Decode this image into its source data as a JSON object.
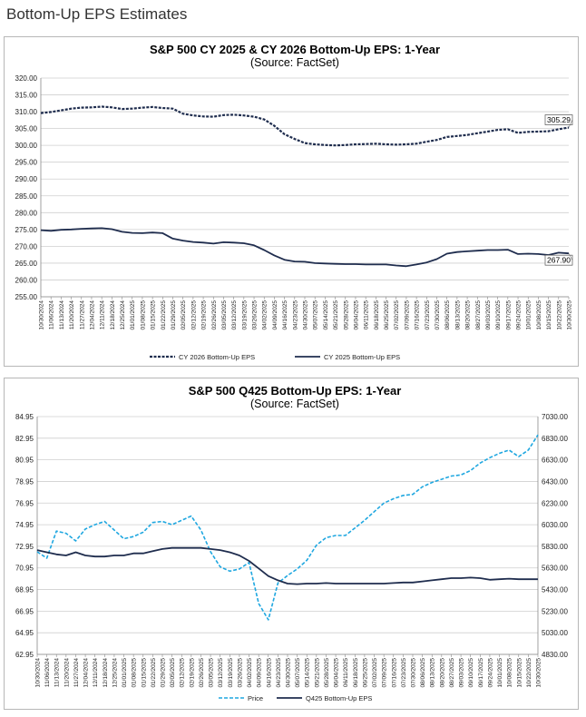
{
  "page": {
    "title": "Bottom-Up EPS Estimates"
  },
  "colors": {
    "navy": "#1f2d4e",
    "price": "#1fa7e0",
    "grid": "#cfcfcf",
    "axis": "#888888"
  },
  "chart_data": [
    {
      "type": "line",
      "title": "S&P 500 CY 2025 & CY 2026 Bottom-Up  EPS: 1-Year",
      "subtitle": "(Source: FactSet)",
      "ylim": [
        255,
        320
      ],
      "y_ticks": [
        "255.00",
        "260.00",
        "265.00",
        "270.00",
        "275.00",
        "280.00",
        "285.00",
        "290.00",
        "295.00",
        "300.00",
        "305.00",
        "310.00",
        "315.00",
        "320.00"
      ],
      "x_labels": [
        "10/30/2024",
        "11/06/2024",
        "11/13/2024",
        "11/20/2024",
        "11/27/2024",
        "12/04/2024",
        "12/11/2024",
        "12/18/2024",
        "12/25/2024",
        "01/01/2025",
        "01/08/2025",
        "01/15/2025",
        "01/22/2025",
        "01/29/2025",
        "02/05/2025",
        "02/12/2025",
        "02/19/2025",
        "02/26/2025",
        "03/05/2025",
        "03/12/2025",
        "03/19/2025",
        "03/26/2025",
        "04/02/2025",
        "04/09/2025",
        "04/16/2025",
        "04/23/2025",
        "04/30/2025",
        "05/07/2025",
        "05/14/2025",
        "05/21/2025",
        "05/28/2025",
        "06/04/2025",
        "06/11/2025",
        "06/18/2025",
        "06/25/2025",
        "07/02/2025",
        "07/09/2025",
        "07/16/2025",
        "07/23/2025",
        "07/30/2025",
        "08/06/2025",
        "08/13/2025",
        "08/20/2025",
        "08/27/2025",
        "09/03/2025",
        "09/10/2025",
        "09/17/2025",
        "09/24/2025",
        "10/01/2025",
        "10/08/2025",
        "10/15/2025",
        "10/22/2025",
        "10/30/2025"
      ],
      "series": [
        {
          "name": "CY 2026 Bottom-Up EPS",
          "style": "dashed",
          "values": [
            309.6,
            309.9,
            310.4,
            310.9,
            311.2,
            311.3,
            311.5,
            311.3,
            310.8,
            310.9,
            311.2,
            311.4,
            311.1,
            310.9,
            309.4,
            308.9,
            308.6,
            308.5,
            309.0,
            309.1,
            308.9,
            308.5,
            307.7,
            305.8,
            303.3,
            301.9,
            300.7,
            300.3,
            300.1,
            300.0,
            300.1,
            300.3,
            300.4,
            300.5,
            300.3,
            300.2,
            300.3,
            300.5,
            301.1,
            301.6,
            302.5,
            302.8,
            303.1,
            303.6,
            304.1,
            304.6,
            304.8,
            303.7,
            304.0,
            304.1,
            304.2,
            304.8,
            305.29
          ],
          "last_label": "305.29"
        },
        {
          "name": "CY 2025 Bottom-Up EPS",
          "style": "solid",
          "values": [
            274.8,
            274.6,
            274.9,
            275.0,
            275.2,
            275.3,
            275.4,
            275.1,
            274.3,
            274.0,
            273.9,
            274.1,
            273.9,
            272.3,
            271.7,
            271.3,
            271.1,
            270.8,
            271.2,
            271.1,
            270.9,
            270.3,
            268.9,
            267.3,
            266.0,
            265.5,
            265.4,
            265.0,
            264.9,
            264.8,
            264.7,
            264.7,
            264.6,
            264.6,
            264.6,
            264.3,
            264.1,
            264.6,
            265.2,
            266.2,
            267.8,
            268.3,
            268.5,
            268.7,
            268.9,
            268.9,
            269.0,
            267.7,
            267.8,
            267.7,
            267.4,
            268.1,
            267.9
          ],
          "last_label": "267.90"
        }
      ]
    },
    {
      "type": "line",
      "title": "S&P 500 Q425 Bottom-Up  EPS: 1-Year",
      "subtitle": "(Source: FactSet)",
      "ylim_left": [
        62.95,
        84.95
      ],
      "ylim_right": [
        4830,
        7030
      ],
      "y_ticks_left": [
        "62.95",
        "64.95",
        "66.95",
        "68.95",
        "70.95",
        "72.95",
        "74.95",
        "76.95",
        "78.95",
        "80.95",
        "82.95",
        "84.95"
      ],
      "y_ticks_right": [
        "4830.00",
        "5030.00",
        "5230.00",
        "5430.00",
        "5630.00",
        "5830.00",
        "6030.00",
        "6230.00",
        "6430.00",
        "6630.00",
        "6830.00",
        "7030.00"
      ],
      "x_labels": [
        "10/30/2024",
        "11/06/2024",
        "11/13/2024",
        "11/20/2024",
        "11/27/2024",
        "12/04/2024",
        "12/11/2024",
        "12/18/2024",
        "12/25/2024",
        "01/01/2025",
        "01/08/2025",
        "01/15/2025",
        "01/22/2025",
        "01/29/2025",
        "02/05/2025",
        "02/12/2025",
        "02/19/2025",
        "02/26/2025",
        "03/05/2025",
        "03/12/2025",
        "03/19/2025",
        "03/26/2025",
        "04/02/2025",
        "04/09/2025",
        "04/16/2025",
        "04/23/2025",
        "04/30/2025",
        "05/07/2025",
        "05/14/2025",
        "05/21/2025",
        "05/28/2025",
        "06/04/2025",
        "06/11/2025",
        "06/18/2025",
        "06/25/2025",
        "07/02/2025",
        "07/09/2025",
        "07/16/2025",
        "07/23/2025",
        "07/30/2025",
        "08/06/2025",
        "08/13/2025",
        "08/20/2025",
        "08/27/2025",
        "09/03/2025",
        "09/10/2025",
        "09/17/2025",
        "09/24/2025",
        "10/01/2025",
        "10/08/2025",
        "10/15/2025",
        "10/22/2025",
        "10/30/2025"
      ],
      "series": [
        {
          "name": "Price",
          "style": "dashed",
          "axis": "right",
          "values": [
            5780,
            5720,
            5970,
            5950,
            5880,
            5990,
            6030,
            6060,
            5980,
            5900,
            5920,
            5960,
            6050,
            6060,
            6030,
            6070,
            6110,
            5980,
            5780,
            5640,
            5600,
            5620,
            5680,
            5300,
            5150,
            5490,
            5560,
            5620,
            5700,
            5840,
            5910,
            5930,
            5930,
            6000,
            6070,
            6150,
            6230,
            6270,
            6300,
            6310,
            6380,
            6420,
            6450,
            6480,
            6490,
            6530,
            6600,
            6650,
            6690,
            6720,
            6660,
            6720,
            6860
          ]
        },
        {
          "name": "Q425 Bottom-Up EPS",
          "style": "solid",
          "axis": "left",
          "values": [
            72.6,
            72.4,
            72.2,
            72.1,
            72.4,
            72.1,
            72.0,
            72.0,
            72.1,
            72.1,
            72.3,
            72.3,
            72.5,
            72.7,
            72.8,
            72.8,
            72.8,
            72.8,
            72.7,
            72.6,
            72.4,
            72.1,
            71.6,
            70.9,
            70.2,
            69.8,
            69.5,
            69.45,
            69.5,
            69.5,
            69.55,
            69.5,
            69.5,
            69.5,
            69.5,
            69.5,
            69.5,
            69.55,
            69.6,
            69.6,
            69.7,
            69.8,
            69.9,
            70.0,
            70.0,
            70.05,
            70.0,
            69.85,
            69.9,
            69.95,
            69.9,
            69.9,
            69.9
          ]
        }
      ]
    }
  ]
}
